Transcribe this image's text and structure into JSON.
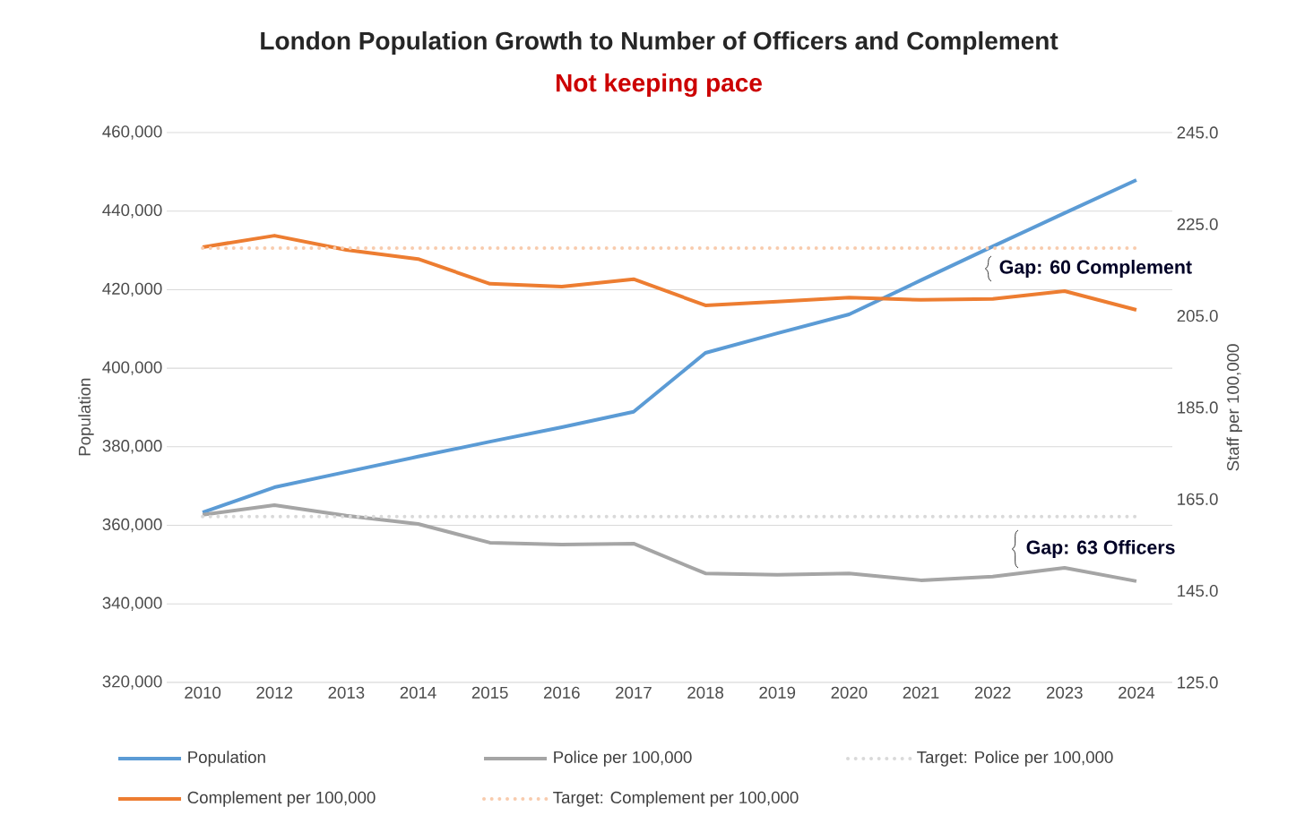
{
  "chart_data": {
    "type": "line",
    "title": "London Population Growth to Number of Officers and Complement",
    "subtitle": "Not keeping pace",
    "categories": [
      "2010",
      "2012",
      "2013",
      "2014",
      "2015",
      "2016",
      "2017",
      "2018",
      "2019",
      "2020",
      "2021",
      "2022",
      "2023",
      "2024"
    ],
    "series": [
      {
        "name": "Population",
        "color": "#5b9bd5",
        "line_style": "solid",
        "values": [
          363300,
          369700,
          373600,
          377500,
          381300,
          385000,
          388900,
          403900,
          408900,
          413700,
          422400,
          431000,
          439500,
          447900
        ]
      },
      {
        "name": "Police per 100,000",
        "color": "#a5a5a5",
        "axis": "y2",
        "line_style": "solid",
        "values": [
          161.6,
          163.7,
          161.4,
          159.6,
          155.5,
          155.1,
          155.3,
          148.8,
          148.5,
          148.8,
          147.3,
          148.1,
          150.0,
          147.1
        ]
      },
      {
        "name": "Target: Police per 100,000",
        "color": "#d9d9d9",
        "axis": "y2",
        "line_style": "dotted",
        "values": [
          161.2,
          161.2,
          161.2,
          161.2,
          161.2,
          161.2,
          161.2,
          161.2,
          161.2,
          161.2,
          161.2,
          161.2,
          161.2,
          161.2
        ]
      },
      {
        "name": "Complement per 100,000",
        "color": "#ed7d31",
        "axis": "y2",
        "line_style": "solid",
        "values": [
          220.0,
          222.5,
          219.4,
          217.4,
          212.0,
          211.4,
          213.0,
          207.3,
          208.1,
          209.0,
          208.5,
          208.7,
          210.4,
          206.3
        ]
      },
      {
        "name": "Target: Complement per 100,000",
        "color": "#f8cbad",
        "axis": "y2",
        "line_style": "dotted",
        "values": [
          219.8,
          219.8,
          219.8,
          219.8,
          219.8,
          219.8,
          219.8,
          219.8,
          219.8,
          219.8,
          219.8,
          219.8,
          219.8,
          219.8
        ]
      }
    ],
    "ylabel": "Population",
    "y2label": "Staff per 100,000",
    "ylim": [
      320000,
      460000
    ],
    "yticks": [
      {
        "value": 320000,
        "label": "320,000"
      },
      {
        "value": 340000,
        "label": "340,000"
      },
      {
        "value": 360000,
        "label": "360,000"
      },
      {
        "value": 380000,
        "label": "380,000"
      },
      {
        "value": 400000,
        "label": "400,000"
      },
      {
        "value": 420000,
        "label": "420,000"
      },
      {
        "value": 440000,
        "label": "440,000"
      },
      {
        "value": 460000,
        "label": "460,000"
      }
    ],
    "y2lim": [
      125,
      245
    ],
    "y2ticks": [
      {
        "value": 125,
        "label": "125.0"
      },
      {
        "value": 145,
        "label": "145.0"
      },
      {
        "value": 165,
        "label": "165.0"
      },
      {
        "value": 185,
        "label": "185.0"
      },
      {
        "value": 205,
        "label": "205.0"
      },
      {
        "value": 225,
        "label": "225.0"
      },
      {
        "value": 245,
        "label": "245.0"
      }
    ],
    "annotations": [
      "Gap: 60 Complement",
      "Gap: 63 Officers"
    ],
    "grid": "y",
    "legend": "bottom",
    "marker": "none"
  }
}
